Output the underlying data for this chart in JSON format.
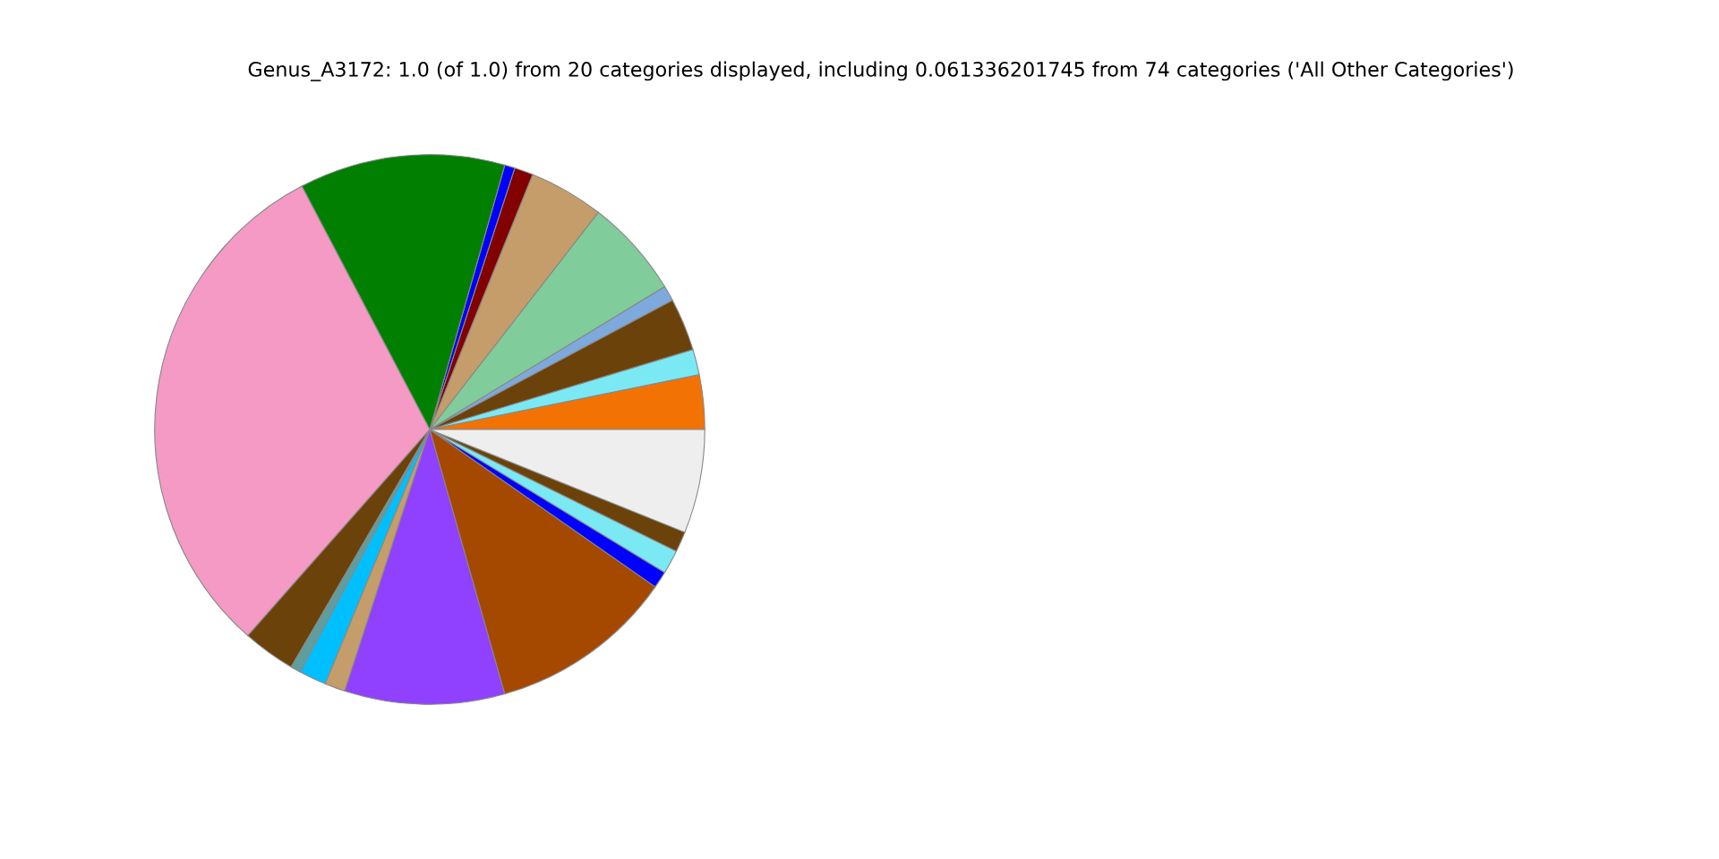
{
  "chart_data": {
    "type": "pie",
    "title": "Genus_A3172: 1.0 (of 1.0) from 20 categories displayed, including 0.061336201745 from 74 categories ('All Other Categories')",
    "categories": [
      null,
      null,
      null,
      null,
      null,
      null,
      null,
      null,
      null,
      null,
      null,
      null,
      null,
      null,
      null,
      null,
      null,
      null,
      null,
      null
    ],
    "values": [
      3.2,
      1.5,
      3.1,
      0.9,
      5.8,
      4.4,
      1.1,
      0.6,
      12.1,
      30.8,
      3.1,
      0.6,
      1.6,
      1.2,
      9.4,
      10.9,
      1.0,
      1.4,
      1.2,
      6.1
    ],
    "colors": [
      "#f27304",
      "#7ae9f4",
      "#6b4209",
      "#7ea9dc",
      "#80cc9b",
      "#c49d6b",
      "#820000",
      "#0000ff",
      "#007f00",
      "#f49ac4",
      "#6b4209",
      "#5f9ea0",
      "#00bfff",
      "#c49d6b",
      "#9040ff",
      "#a54800",
      "#0000ff",
      "#7ae9f4",
      "#6b4209",
      "#eeeeee"
    ]
  }
}
